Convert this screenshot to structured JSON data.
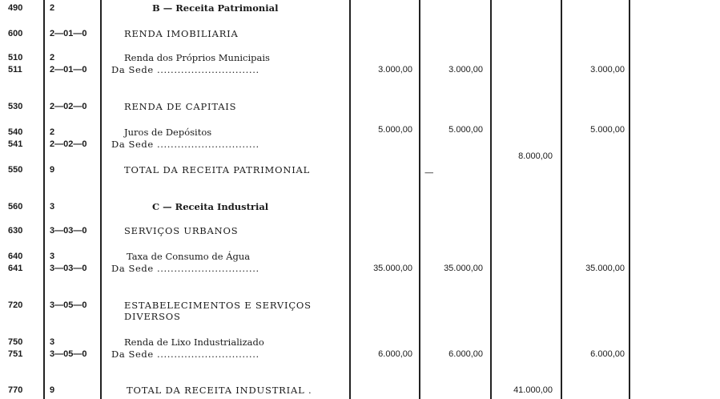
{
  "rows": [
    {
      "line": "490",
      "code": "2",
      "desc": "B — Receita Patrimonial",
      "type": "section"
    },
    {
      "line": "600",
      "code": "2—01—0",
      "desc": "RENDA IMOBILIARIA"
    },
    {
      "line": "510",
      "code": "2",
      "desc": "Renda dos Próprios Municipais"
    },
    {
      "line": "511",
      "code": "2—01—0",
      "desc": "Da Sede ..............................",
      "a1": "3.000,00",
      "a2": "3.000,00",
      "a4": "3.000,00"
    },
    {
      "line": "530",
      "code": "2—02—0",
      "desc": "RENDA DE CAPITAIS"
    },
    {
      "line": "540",
      "code": "2",
      "desc": "Juros de Depósitos",
      "a1": "5.000,00",
      "a2": "5.000,00",
      "a4": "5.000,00"
    },
    {
      "line": "541",
      "code": "2—02—0",
      "desc": "Da Sede ..............................",
      "a3": "8.000,00"
    },
    {
      "line": "550",
      "code": "9",
      "desc": "TOTAL DA RECEITA PATRIMONIAL",
      "a2": "—"
    },
    {
      "line": "560",
      "code": "3",
      "desc": "C — Receita Industrial",
      "type": "section"
    },
    {
      "line": "630",
      "code": "3—03—0",
      "desc": "SERVIÇOS URBANOS"
    },
    {
      "line": "640",
      "code": "3",
      "desc": "Taxa de Consumo de Água"
    },
    {
      "line": "641",
      "code": "3—03—0",
      "desc": "Da Sede ..............................",
      "a1": "35.000,00",
      "a2": "35.000,00",
      "a4": "35.000,00"
    },
    {
      "line": "720",
      "code": "3—05—0",
      "desc": "ESTABELECIMENTOS E SERVIÇOS",
      "desc2": "DIVERSOS"
    },
    {
      "line": "750",
      "code": "3",
      "desc": "Renda de Lixo Industrializado"
    },
    {
      "line": "751",
      "code": "3—05—0",
      "desc": "Da Sede ..............................",
      "a1": "6.000,00",
      "a2": "6.000,00",
      "a4": "6.000,00"
    },
    {
      "line": "770",
      "code": "9",
      "desc": "TOTAL DA RECEITA INDUSTRIAL .",
      "a3": "41.000,00"
    }
  ]
}
